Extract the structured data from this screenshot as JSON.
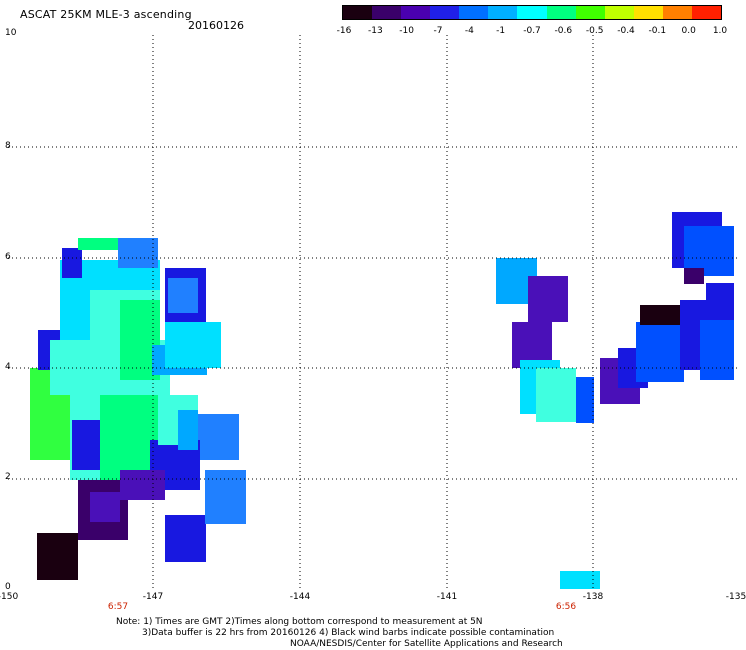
{
  "header": {
    "title": "ASCAT 25KM MLE-3 ascending",
    "date": "20160126"
  },
  "colorbar": {
    "labels": [
      "-16",
      "-13",
      "-10",
      "-7",
      "-4",
      "-1",
      "-0.7",
      "-0.6",
      "-0.5",
      "-0.4",
      "-0.1",
      "0.0",
      "1.0"
    ],
    "colors": [
      "#1a0010",
      "#3a006a",
      "#4a00b0",
      "#2020e8",
      "#0070ff",
      "#00b0ff",
      "#00ffff",
      "#00ff80",
      "#40ff00",
      "#c0ff00",
      "#ffe000",
      "#ff8000",
      "#ff2000"
    ]
  },
  "axes": {
    "y_labels": [
      "0",
      "2",
      "4",
      "6",
      "8",
      "10"
    ],
    "x_labels": [
      "-150",
      "-147",
      "-144",
      "-141",
      "-138",
      "-135"
    ],
    "time_labels": [
      "6:57",
      "6:56"
    ]
  },
  "notes": {
    "line1": "Note: 1) Times are GMT 2)Times along bottom correspond to measurement at 5N",
    "line2": "3)Data buffer is 22 hrs from 20160126 4) Black wind barbs indicate possible contamination",
    "line3": "NOAA/NESDIS/Center for Satellite Applications and Research"
  },
  "colors": {
    "grid": "#000000",
    "time_label": "#cc2200"
  }
}
